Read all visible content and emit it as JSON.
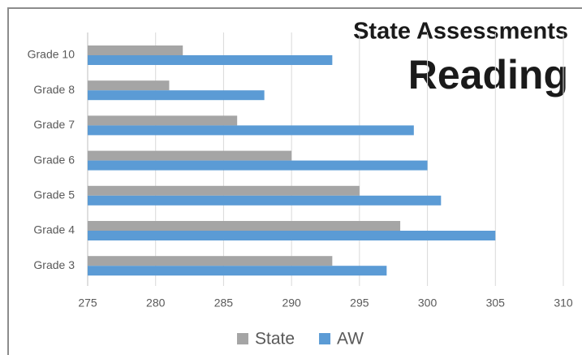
{
  "chart_data": {
    "type": "hbar",
    "title": "State Assessments",
    "subtitle": "Reading",
    "categories": [
      "Grade 10",
      "Grade 8",
      "Grade 7",
      "Grade 6",
      "Grade 5",
      "Grade 4",
      "Grade 3"
    ],
    "series": [
      {
        "name": "State",
        "color": "#a5a5a5",
        "values": [
          282,
          281,
          286,
          290,
          295,
          298,
          293
        ]
      },
      {
        "name": "AW",
        "color": "#5b9bd5",
        "values": [
          293,
          288,
          299,
          300,
          301,
          305,
          297
        ]
      }
    ],
    "xlim": [
      275,
      310
    ],
    "xticks": [
      275,
      280,
      285,
      290,
      295,
      300,
      305,
      310
    ],
    "grid": true,
    "legend": "bottom"
  }
}
